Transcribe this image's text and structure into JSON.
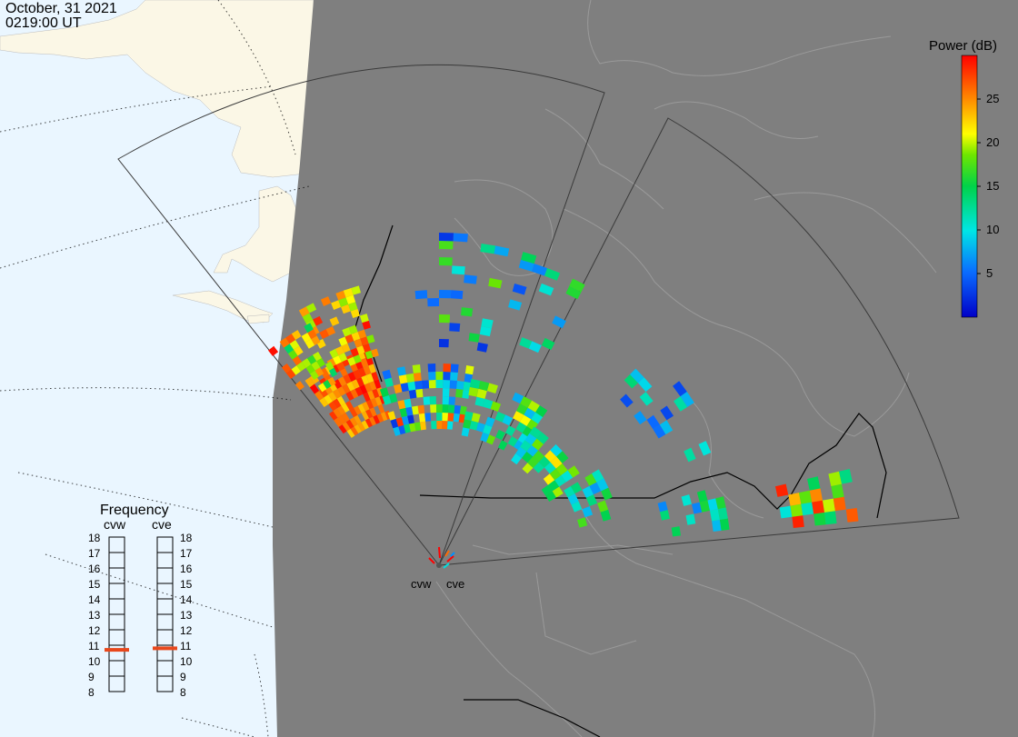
{
  "header": {
    "date": "October, 31 2021",
    "time": "0219:00 UT"
  },
  "colorbar": {
    "title": "Power (dB)",
    "ticks": [
      "25",
      "20",
      "15",
      "10",
      "5"
    ],
    "range": [
      0,
      30
    ],
    "tick_values": [
      25,
      20,
      15,
      10,
      5
    ]
  },
  "frequency_panel": {
    "title": "Frequency",
    "radars": [
      {
        "label": "cvw",
        "selected_mhz": 10.7
      },
      {
        "label": "cve",
        "selected_mhz": 10.8
      }
    ],
    "scale": [
      "18",
      "17",
      "16",
      "15",
      "14",
      "13",
      "12",
      "11",
      "10",
      "9",
      "8"
    ]
  },
  "radar_sites": [
    {
      "label": "cvw"
    },
    {
      "label": "cve"
    }
  ],
  "colors": {
    "ocean": "#eaf6ff",
    "land_day": "#fbf7e6",
    "night": "#7f7f7f",
    "border": "#000000",
    "fov_outline": "#3a3a3a"
  }
}
